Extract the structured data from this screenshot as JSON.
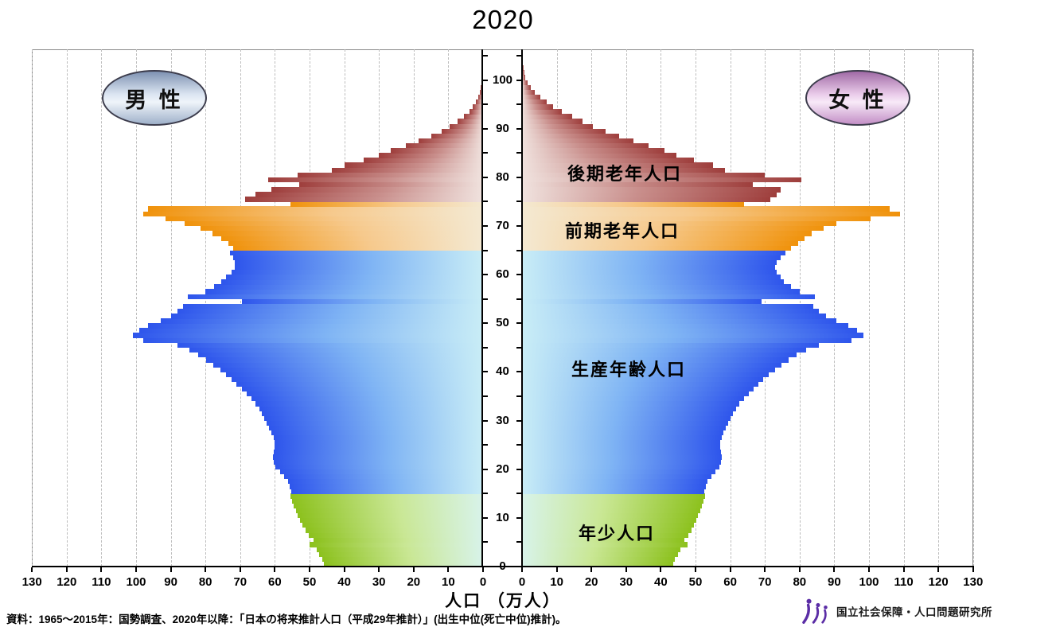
{
  "title": "2020",
  "legend": {
    "male": "男 性",
    "female": "女 性"
  },
  "xaxis": {
    "label": "人口 （万人）",
    "unit": "万人",
    "max_per_side": 130,
    "male_ticks": [
      130,
      120,
      110,
      100,
      90,
      80,
      70,
      60,
      50,
      40,
      30,
      20,
      10,
      0
    ],
    "female_ticks": [
      0,
      10,
      20,
      30,
      40,
      50,
      60,
      70,
      80,
      90,
      100,
      110,
      120,
      130
    ]
  },
  "yaxis": {
    "age_min": 0,
    "age_max": 105,
    "labels": [
      0,
      10,
      20,
      30,
      40,
      50,
      60,
      70,
      80,
      90,
      100
    ],
    "minor_tick_step": 5
  },
  "age_groups": [
    {
      "label": "年少人口",
      "from": 0,
      "to": 14,
      "color": "#8CC11D",
      "fade": [
        "#8CC11D",
        "#C9E794",
        "#D8F3EA"
      ]
    },
    {
      "label": "生産年齢人口",
      "from": 15,
      "to": 64,
      "color": "#2E55EC",
      "fade": [
        "#2E55EC",
        "#7FB4F4",
        "#C9EDF6"
      ]
    },
    {
      "label": "前期老年人口",
      "from": 65,
      "to": 74,
      "color": "#F0920B",
      "fade": [
        "#F0920B",
        "#F6C98C",
        "#F4E9D2"
      ]
    },
    {
      "label": "後期老年人口",
      "from": 75,
      "to": 105,
      "color": "#9E3E3C",
      "fade": [
        "#9E3E3C",
        "#C98F8C",
        "#F0E2DE"
      ]
    }
  ],
  "chart_data": {
    "type": "bar",
    "variant": "population-pyramid",
    "title": "2020",
    "unit": "万人 (ten-thousands of persons)",
    "ages": "single years 0-105",
    "xlim_per_side": [
      0,
      130
    ],
    "grid": "vertical dashed every 10",
    "series": [
      {
        "name": "男性",
        "values": [
          45.8,
          46.3,
          47.2,
          47.9,
          50.0,
          48.9,
          50.2,
          51.2,
          52.0,
          52.7,
          53.4,
          54.0,
          54.5,
          55.0,
          55.4,
          55.2,
          55.8,
          56.3,
          57.4,
          58.6,
          59.8,
          60.3,
          60.6,
          60.4,
          60.0,
          60.0,
          60.4,
          61.0,
          61.7,
          62.4,
          63.0,
          63.7,
          64.5,
          65.5,
          66.8,
          68.2,
          69.6,
          71.0,
          72.5,
          74.1,
          75.8,
          77.7,
          79.8,
          82.1,
          84.7,
          88.0,
          98.0,
          101.0,
          99.0,
          96.5,
          93.0,
          90.0,
          88.0,
          86.5,
          69.5,
          85.0,
          80.0,
          77.5,
          75.5,
          74.0,
          72.5,
          71.5,
          71.5,
          72.0,
          73.0,
          72.0,
          73.5,
          75.5,
          78.0,
          81.5,
          86.0,
          91.5,
          98.0,
          96.5,
          55.5,
          68.5,
          65.5,
          61.0,
          53.0,
          62.0,
          53.5,
          43.5,
          40.0,
          34.5,
          30.0,
          26.5,
          22.3,
          18.5,
          15.0,
          12.0,
          9.7,
          7.4,
          5.5,
          4.0,
          2.9,
          2.0,
          1.4,
          0.9,
          0.6,
          0.4,
          0.25,
          0.15,
          0.08,
          0.05,
          0.03,
          0.02
        ]
      },
      {
        "name": "女性",
        "values": [
          43.6,
          44.1,
          45.0,
          45.7,
          47.8,
          46.7,
          47.9,
          48.8,
          49.5,
          50.2,
          50.8,
          51.4,
          51.9,
          52.3,
          52.7,
          52.5,
          53.0,
          53.5,
          54.6,
          55.7,
          56.8,
          57.3,
          57.6,
          57.4,
          57.1,
          57.1,
          57.5,
          58.1,
          58.8,
          59.5,
          60.1,
          60.8,
          61.6,
          62.6,
          63.9,
          65.3,
          66.7,
          68.1,
          69.6,
          71.2,
          72.9,
          74.8,
          76.9,
          79.2,
          81.8,
          85.5,
          95.0,
          98.5,
          96.5,
          94.0,
          90.5,
          87.5,
          85.5,
          84.0,
          69.0,
          84.5,
          80.0,
          77.5,
          75.5,
          74.5,
          73.5,
          73.0,
          73.5,
          74.5,
          76.0,
          77.5,
          79.5,
          81.5,
          83.5,
          87.0,
          90.5,
          100.5,
          109.0,
          106.0,
          64.0,
          71.5,
          73.5,
          74.5,
          66.5,
          80.5,
          70.0,
          58.5,
          55.0,
          49.5,
          44.5,
          41.0,
          36.5,
          32.0,
          28.0,
          24.0,
          20.5,
          17.5,
          14.5,
          11.5,
          9.0,
          7.0,
          5.2,
          3.7,
          2.5,
          1.6,
          1.0,
          0.6,
          0.35,
          0.2,
          0.12,
          0.1
        ]
      }
    ]
  },
  "source": "資料：1965～2015年：国勢調査、2020年以降：「日本の将来推計人口（平成29年推計）」(出生中位(死亡中位)推計)。",
  "logo": {
    "text": "国立社会保障・人口問題研究所",
    "color": "#5B2DA6"
  }
}
